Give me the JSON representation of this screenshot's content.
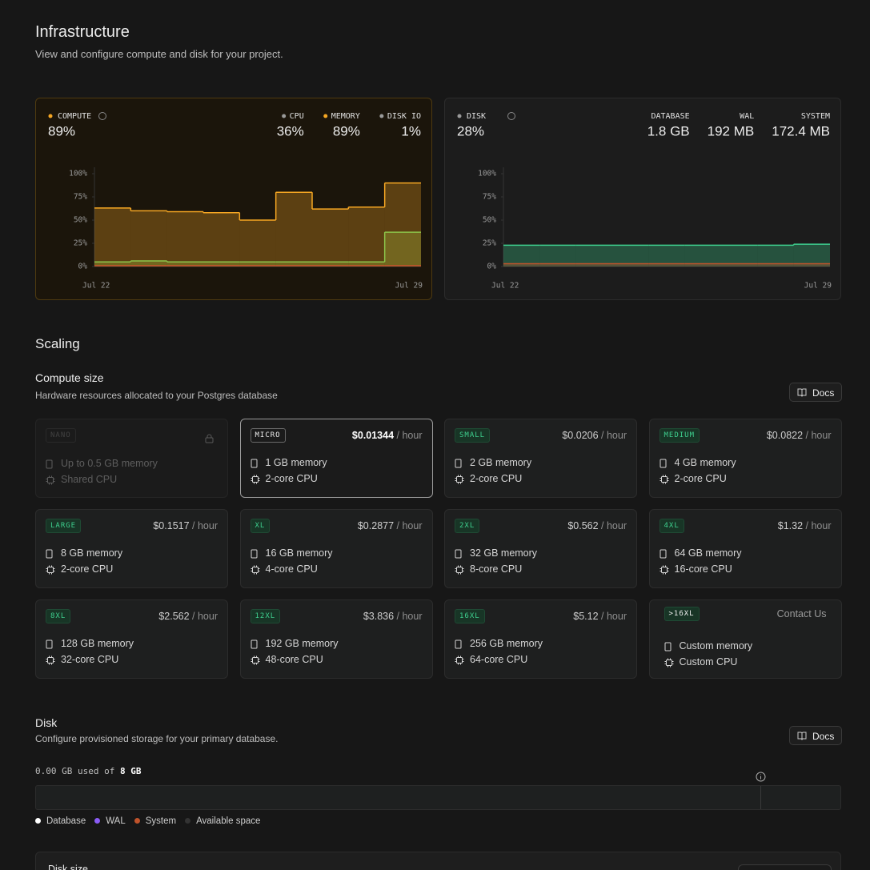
{
  "header": {
    "title": "Infrastructure",
    "subtitle": "View and configure compute and disk for your project."
  },
  "chart_data": [
    {
      "type": "step-area",
      "summary": {
        "label": "COMPUTE",
        "value": "89%",
        "color": "#f5a623"
      },
      "categories": [
        "Jul 22",
        null,
        null,
        null,
        null,
        null,
        null,
        null,
        "Jul 29"
      ],
      "ylim": [
        0,
        100
      ],
      "yticks": [
        {
          "value": 0,
          "label": "0%"
        },
        {
          "value": 25,
          "label": "25%"
        },
        {
          "value": 50,
          "label": "50%"
        },
        {
          "value": 75,
          "label": "75%"
        },
        {
          "value": 100,
          "label": "100%"
        }
      ],
      "series": [
        {
          "name": "CPU",
          "summary": "36%",
          "dot_color": "#9a9a9a",
          "color": "#8bc34a",
          "values": [
            5,
            6,
            5,
            5,
            5,
            5,
            5,
            5,
            37
          ]
        },
        {
          "name": "MEMORY",
          "summary": "89%",
          "dot_color": "#f5a623",
          "color": "#f5a623",
          "values": [
            63,
            60,
            59,
            58,
            50,
            80,
            62,
            64,
            90
          ]
        },
        {
          "name": "DISK IO",
          "summary": "1%",
          "dot_color": "#9a9a9a",
          "color": "#c0532b",
          "values": [
            1,
            1,
            1,
            1,
            1,
            1,
            1,
            1,
            1
          ]
        }
      ]
    },
    {
      "type": "step-area",
      "summary": {
        "label": "DISK",
        "value": "28%",
        "color": "#9a9a9a"
      },
      "categories": [
        "Jul 22",
        null,
        null,
        null,
        null,
        null,
        null,
        null,
        "Jul 29"
      ],
      "ylim": [
        0,
        100
      ],
      "yticks": [
        {
          "value": 0,
          "label": "0%"
        },
        {
          "value": 25,
          "label": "25%"
        },
        {
          "value": 50,
          "label": "50%"
        },
        {
          "value": 75,
          "label": "75%"
        },
        {
          "value": 100,
          "label": "100%"
        }
      ],
      "series": [
        {
          "name": "DATABASE",
          "summary": "1.8 GB",
          "color": "#3ecf8e",
          "values": [
            23,
            23,
            23,
            23,
            23,
            23,
            23,
            23,
            24
          ]
        },
        {
          "name": "WAL",
          "summary": "192 MB",
          "color": "#8b5cf6"
        },
        {
          "name": "SYSTEM",
          "summary": "172.4 MB",
          "color": "#c0532b",
          "values": [
            3,
            3,
            3,
            3,
            3,
            3,
            3,
            3,
            3
          ]
        }
      ]
    }
  ],
  "scaling": {
    "title": "Scaling"
  },
  "compute_size": {
    "title": "Compute size",
    "description": "Hardware resources allocated to your Postgres database",
    "docs": "Docs",
    "price_unit": "/ hour",
    "tiers": [
      {
        "tag": "NANO",
        "memory": "Up to 0.5 GB memory",
        "cpu": "Shared CPU",
        "locked": true
      },
      {
        "tag": "MICRO",
        "price": "$0.01344",
        "memory": "1 GB memory",
        "cpu": "2-core CPU",
        "selected": true
      },
      {
        "tag": "SMALL",
        "price": "$0.0206",
        "memory": "2 GB memory",
        "cpu": "2-core CPU"
      },
      {
        "tag": "MEDIUM",
        "price": "$0.0822",
        "memory": "4 GB memory",
        "cpu": "2-core CPU"
      },
      {
        "tag": "LARGE",
        "price": "$0.1517",
        "memory": "8 GB memory",
        "cpu": "2-core CPU"
      },
      {
        "tag": "XL",
        "price": "$0.2877",
        "memory": "16 GB memory",
        "cpu": "4-core CPU"
      },
      {
        "tag": "2XL",
        "price": "$0.562",
        "memory": "32 GB memory",
        "cpu": "8-core CPU"
      },
      {
        "tag": "4XL",
        "price": "$1.32",
        "memory": "64 GB memory",
        "cpu": "16-core CPU"
      },
      {
        "tag": "8XL",
        "price": "$2.562",
        "memory": "128 GB memory",
        "cpu": "32-core CPU"
      },
      {
        "tag": "12XL",
        "price": "$3.836",
        "memory": "192 GB memory",
        "cpu": "48-core CPU"
      },
      {
        "tag": "16XL",
        "price": "$5.12",
        "memory": "256 GB memory",
        "cpu": "64-core CPU"
      },
      {
        "tag": ">16XL",
        "contact": "Contact Us",
        "memory": "Custom memory",
        "cpu": "Custom CPU"
      }
    ]
  },
  "disk": {
    "title": "Disk",
    "description": "Configure provisioned storage for your primary database.",
    "docs": "Docs",
    "usage_prefix": "0.00 GB used of",
    "usage_total": "8 GB",
    "legend": [
      {
        "label": "Database",
        "color": "#ffffff"
      },
      {
        "label": "WAL",
        "color": "#8b5cf6"
      },
      {
        "label": "System",
        "color": "#c0532b"
      },
      {
        "label": "Available space",
        "color": "#333333"
      }
    ],
    "size_title": "Disk size"
  }
}
